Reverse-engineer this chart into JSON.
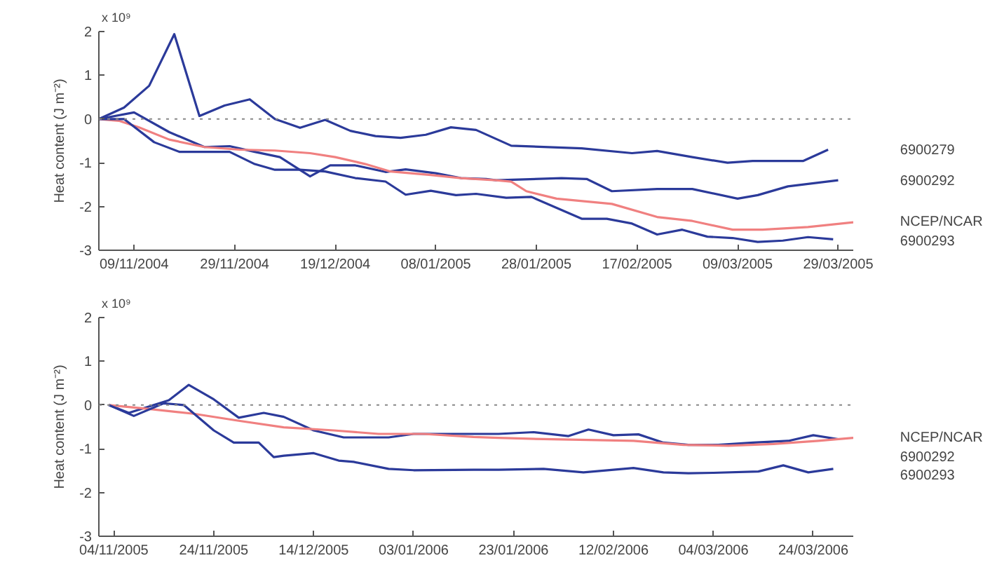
{
  "chart_data": [
    {
      "type": "line",
      "ylabel": "Heat content (J m⁻²)",
      "annotations": [
        "x 10⁹"
      ],
      "xlim": [
        "2004-11-02",
        "2005-04-01"
      ],
      "ylim": [
        -3,
        2
      ],
      "yticks": [
        -3,
        -2,
        -1,
        0,
        1,
        2
      ],
      "xticks": [
        {
          "value": "2004-11-09",
          "label": "09/11/2004"
        },
        {
          "value": "2004-11-29",
          "label": "29/11/2004"
        },
        {
          "value": "2004-12-19",
          "label": "19/12/2004"
        },
        {
          "value": "2005-01-08",
          "label": "08/01/2005"
        },
        {
          "value": "2005-01-28",
          "label": "28/01/2005"
        },
        {
          "value": "2005-02-17",
          "label": "17/02/2005"
        },
        {
          "value": "2005-03-09",
          "label": "09/03/2005"
        },
        {
          "value": "2005-03-29",
          "label": "29/03/2005"
        }
      ],
      "grid": false,
      "marker": "none",
      "line_style": "solid",
      "ref_lines": [
        {
          "axis": "y",
          "value": 0,
          "label": null,
          "color": "#888888",
          "line_style": "dotted"
        }
      ],
      "series": [
        {
          "name": "6900279",
          "color": "#2b3a9a",
          "x": [
            "2004-11-02",
            "2004-11-07",
            "2004-11-12",
            "2004-11-17",
            "2004-11-22",
            "2004-11-27",
            "2004-12-02",
            "2004-12-07",
            "2004-12-12",
            "2004-12-17",
            "2004-12-22",
            "2004-12-27",
            "2005-01-01",
            "2005-01-06",
            "2005-01-11",
            "2005-01-16",
            "2005-01-23",
            "2005-02-06",
            "2005-02-16",
            "2005-02-21",
            "2005-02-28",
            "2005-03-07",
            "2005-03-12",
            "2005-03-22",
            "2005-03-27"
          ],
          "values": [
            0,
            0.26,
            0.76,
            1.94,
            0.07,
            0.31,
            0.45,
            0,
            -0.2,
            -0.02,
            -0.27,
            -0.39,
            -0.43,
            -0.36,
            -0.19,
            -0.25,
            -0.61,
            -0.67,
            -0.78,
            -0.73,
            -0.87,
            -1.0,
            -0.96,
            -0.96,
            -0.7
          ]
        },
        {
          "name": "6900292",
          "color": "#2b3a9a",
          "x": [
            "2004-11-02",
            "2004-11-09",
            "2004-11-16",
            "2004-11-23",
            "2004-11-28",
            "2004-12-03",
            "2004-12-08",
            "2004-12-14",
            "2004-12-18",
            "2004-12-23",
            "2004-12-29",
            "2005-01-02",
            "2005-01-08",
            "2005-01-13",
            "2005-01-18",
            "2005-01-20",
            "2005-02-02",
            "2005-02-07",
            "2005-02-12",
            "2005-02-21",
            "2005-02-28",
            "2005-03-09",
            "2005-03-13",
            "2005-03-19",
            "2005-03-29"
          ],
          "values": [
            0,
            0.15,
            -0.3,
            -0.64,
            -0.62,
            -0.75,
            -0.87,
            -1.31,
            -1.06,
            -1.06,
            -1.21,
            -1.15,
            -1.24,
            -1.35,
            -1.37,
            -1.4,
            -1.35,
            -1.37,
            -1.65,
            -1.6,
            -1.6,
            -1.82,
            -1.74,
            -1.54,
            -1.4
          ]
        },
        {
          "name": "NCEP/NCAR",
          "color": "#f08080",
          "x": [
            "2004-11-02",
            "2004-11-06",
            "2004-11-10",
            "2004-11-16",
            "2004-11-23",
            "2004-11-30",
            "2004-12-07",
            "2004-12-14",
            "2004-12-19",
            "2004-12-25",
            "2004-12-30",
            "2005-01-07",
            "2005-01-13",
            "2005-01-20",
            "2005-01-23",
            "2005-01-26",
            "2005-02-01",
            "2005-02-12",
            "2005-02-21",
            "2005-02-28",
            "2005-03-08",
            "2005-03-14",
            "2005-03-23",
            "2005-04-01"
          ],
          "values": [
            0,
            -0.04,
            -0.19,
            -0.47,
            -0.64,
            -0.7,
            -0.72,
            -0.78,
            -0.87,
            -1.03,
            -1.2,
            -1.28,
            -1.35,
            -1.4,
            -1.43,
            -1.65,
            -1.82,
            -1.94,
            -2.24,
            -2.33,
            -2.53,
            -2.53,
            -2.47,
            -2.36
          ]
        },
        {
          "name": "6900293",
          "color": "#2b3a9a",
          "x": [
            "2004-11-02",
            "2004-11-07",
            "2004-11-13",
            "2004-11-18",
            "2004-11-24",
            "2004-11-28",
            "2004-12-03",
            "2004-12-07",
            "2004-12-12",
            "2004-12-17",
            "2004-12-23",
            "2004-12-29",
            "2005-01-02",
            "2005-01-07",
            "2005-01-12",
            "2005-01-16",
            "2005-01-22",
            "2005-01-27",
            "2005-02-06",
            "2005-02-11",
            "2005-02-16",
            "2005-02-21",
            "2005-02-26",
            "2005-03-03",
            "2005-03-08",
            "2005-03-13",
            "2005-03-18",
            "2005-03-23",
            "2005-03-28"
          ],
          "values": [
            0,
            0,
            -0.53,
            -0.75,
            -0.75,
            -0.75,
            -1.03,
            -1.16,
            -1.16,
            -1.2,
            -1.35,
            -1.43,
            -1.73,
            -1.64,
            -1.74,
            -1.71,
            -1.8,
            -1.78,
            -2.28,
            -2.28,
            -2.39,
            -2.64,
            -2.53,
            -2.69,
            -2.72,
            -2.81,
            -2.78,
            -2.7,
            -2.75
          ]
        }
      ]
    },
    {
      "type": "line",
      "ylabel": "Heat content (J m⁻²)",
      "annotations": [
        "x 10⁹"
      ],
      "xlim": [
        "2005-11-01",
        "2006-04-01"
      ],
      "ylim": [
        -3,
        2
      ],
      "yticks": [
        -3,
        -2,
        -1,
        0,
        1,
        2
      ],
      "xticks": [
        {
          "value": "2005-11-04",
          "label": "04/11/2005"
        },
        {
          "value": "2005-11-24",
          "label": "24/11/2005"
        },
        {
          "value": "2005-12-14",
          "label": "14/12/2005"
        },
        {
          "value": "2006-01-03",
          "label": "03/01/2006"
        },
        {
          "value": "2006-01-23",
          "label": "23/01/2006"
        },
        {
          "value": "2006-02-12",
          "label": "12/02/2006"
        },
        {
          "value": "2006-03-04",
          "label": "04/03/2006"
        },
        {
          "value": "2006-03-24",
          "label": "24/03/2006"
        }
      ],
      "grid": false,
      "marker": "none",
      "line_style": "solid",
      "ref_lines": [
        {
          "axis": "y",
          "value": 0,
          "label": null,
          "color": "#888888",
          "line_style": "dotted"
        }
      ],
      "series": [
        {
          "name": "6900292",
          "color": "#2b3a9a",
          "x": [
            "2005-11-03",
            "2005-11-07",
            "2005-11-15",
            "2005-11-19",
            "2005-11-24",
            "2005-11-29",
            "2005-12-04",
            "2005-12-08",
            "2005-12-14",
            "2005-12-20",
            "2005-12-29",
            "2006-01-03",
            "2006-01-15",
            "2006-01-20",
            "2006-01-27",
            "2006-02-03",
            "2006-02-07",
            "2006-02-12",
            "2006-02-17",
            "2006-02-22",
            "2006-02-27",
            "2006-03-05",
            "2006-03-12",
            "2006-03-19",
            "2006-03-24",
            "2006-03-29"
          ],
          "values": [
            0,
            -0.18,
            0.11,
            0.46,
            0.13,
            -0.29,
            -0.18,
            -0.27,
            -0.58,
            -0.74,
            -0.74,
            -0.66,
            -0.66,
            -0.66,
            -0.62,
            -0.71,
            -0.56,
            -0.69,
            -0.67,
            -0.86,
            -0.91,
            -0.91,
            -0.86,
            -0.82,
            -0.69,
            -0.78
          ]
        },
        {
          "name": "NCEP/NCAR",
          "color": "#f08080",
          "x": [
            "2005-11-03",
            "2005-11-11",
            "2005-11-20",
            "2005-11-29",
            "2005-12-08",
            "2005-12-18",
            "2005-12-27",
            "2006-01-05",
            "2006-01-15",
            "2006-01-20",
            "2006-01-29",
            "2006-02-07",
            "2006-02-16",
            "2006-02-26",
            "2006-03-07",
            "2006-03-16",
            "2006-03-25",
            "2006-04-01"
          ],
          "values": [
            0,
            -0.09,
            -0.2,
            -0.36,
            -0.51,
            -0.58,
            -0.66,
            -0.66,
            -0.73,
            -0.75,
            -0.78,
            -0.8,
            -0.82,
            -0.91,
            -0.93,
            -0.89,
            -0.82,
            -0.75
          ]
        },
        {
          "name": "6900293",
          "color": "#2b3a9a",
          "x": [
            "2005-11-03",
            "2005-11-08",
            "2005-11-14",
            "2005-11-18",
            "2005-11-24",
            "2005-11-28",
            "2005-12-03",
            "2005-12-06",
            "2005-12-08",
            "2005-12-14",
            "2005-12-19",
            "2005-12-22",
            "2005-12-29",
            "2006-01-03",
            "2006-01-15",
            "2006-01-20",
            "2006-01-29",
            "2006-02-06",
            "2006-02-16",
            "2006-02-22",
            "2006-02-27",
            "2006-03-04",
            "2006-03-13",
            "2006-03-18",
            "2006-03-23",
            "2006-03-28"
          ],
          "values": [
            0,
            -0.25,
            0.04,
            0,
            -0.58,
            -0.86,
            -0.86,
            -1.19,
            -1.16,
            -1.1,
            -1.27,
            -1.3,
            -1.46,
            -1.49,
            -1.48,
            -1.48,
            -1.46,
            -1.54,
            -1.44,
            -1.54,
            -1.56,
            -1.55,
            -1.52,
            -1.38,
            -1.54,
            -1.46
          ]
        }
      ]
    }
  ]
}
